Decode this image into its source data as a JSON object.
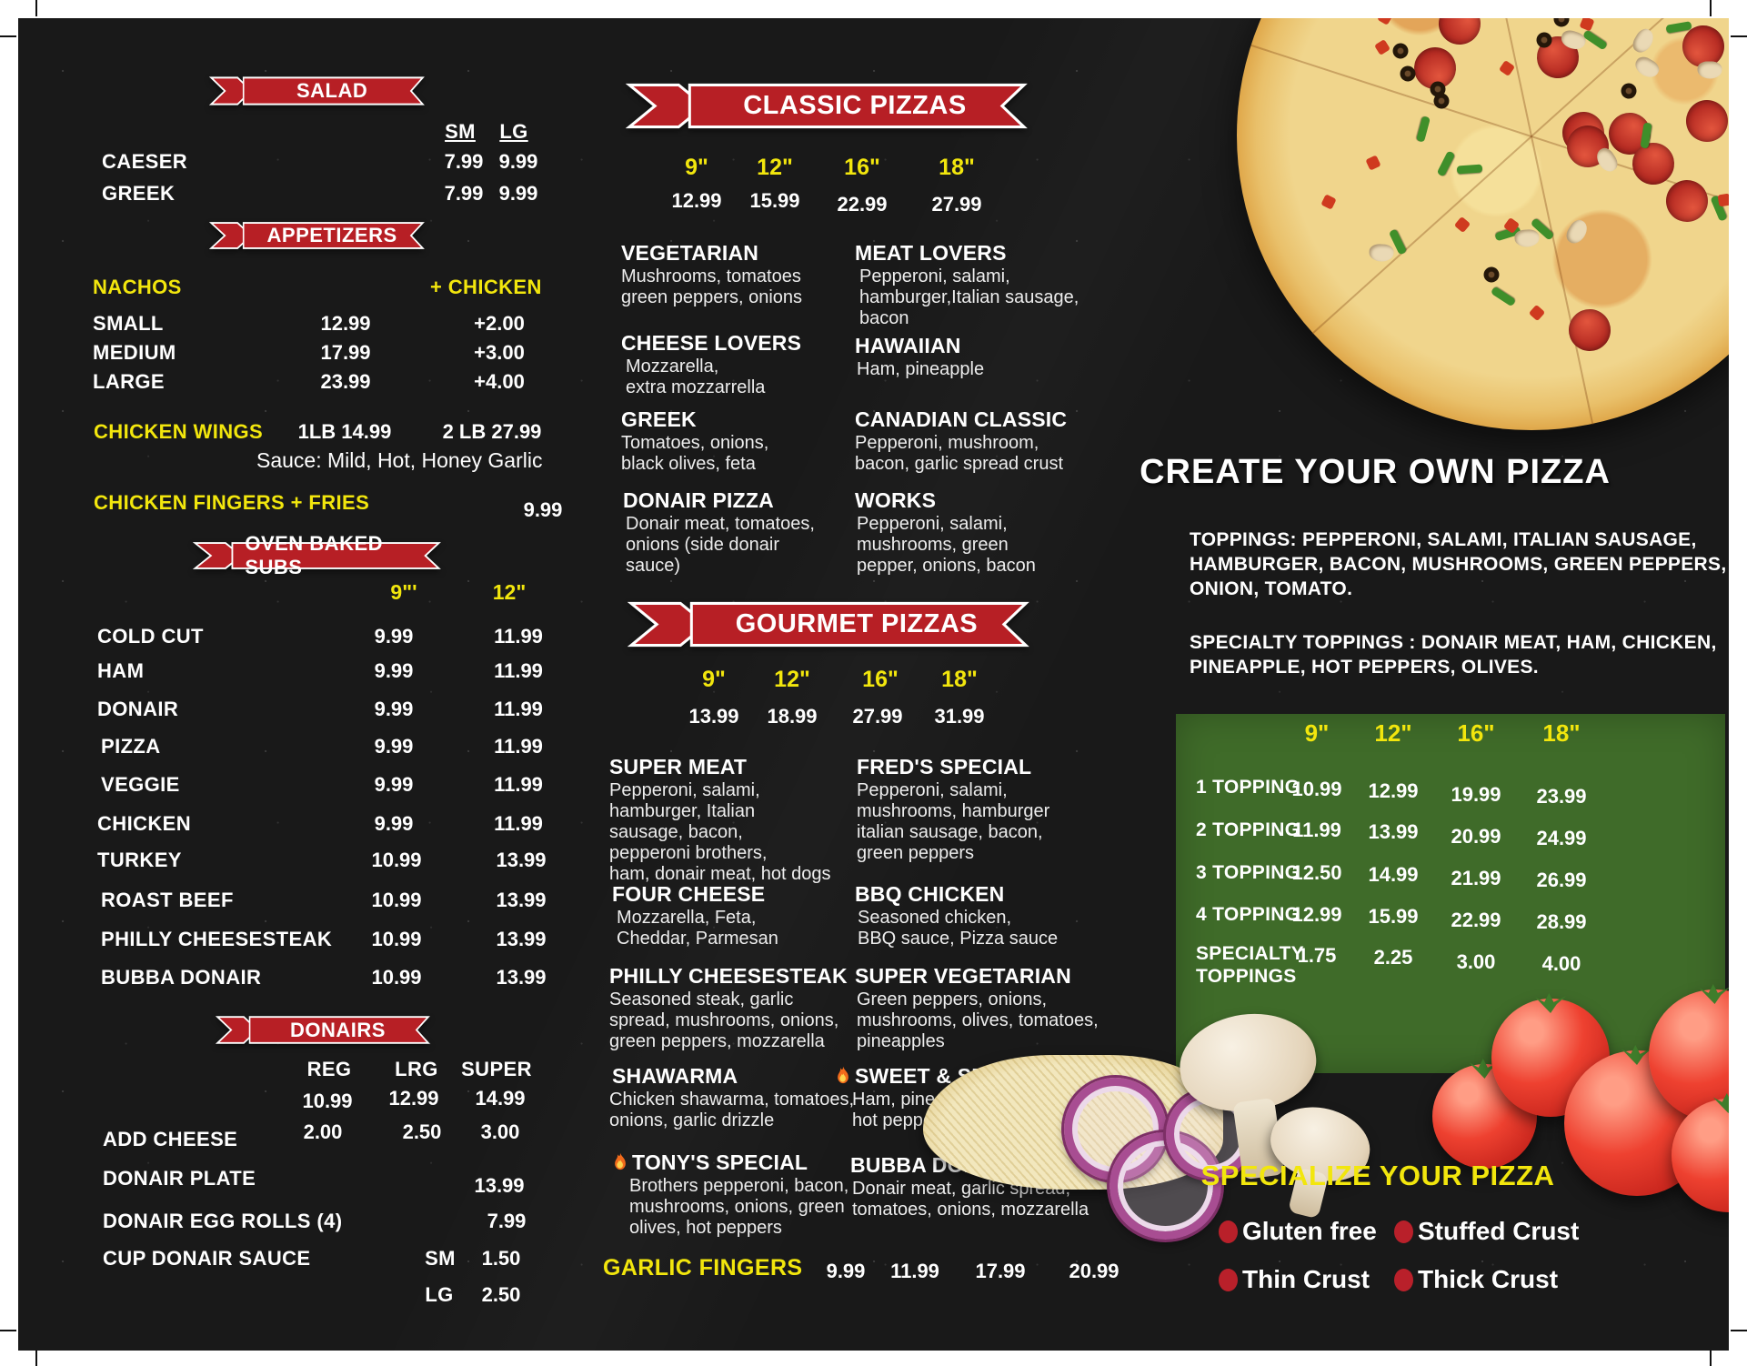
{
  "colors": {
    "board_bg": "#191919",
    "ribbon_red": "#b71f25",
    "accent_yellow": "#f2e60d",
    "table_green": "#3f6b29",
    "bullet_red": "#b9202a"
  },
  "salad": {
    "banner": "SALAD",
    "col_sm": "SM",
    "col_lg": "LG",
    "items": [
      {
        "name": "CAESER",
        "sm": "7.99",
        "lg": "9.99"
      },
      {
        "name": "GREEK",
        "sm": "7.99",
        "lg": "9.99"
      }
    ]
  },
  "appetizers": {
    "banner": "APPETIZERS",
    "nachos_label": "NACHOS",
    "chicken_label": "+ CHICKEN",
    "nachos": [
      {
        "size": "SMALL",
        "price": "12.99",
        "chicken": "+2.00"
      },
      {
        "size": "MEDIUM",
        "price": "17.99",
        "chicken": "+3.00"
      },
      {
        "size": "LARGE",
        "price": "23.99",
        "chicken": "+4.00"
      }
    ],
    "wings": {
      "label": "CHICKEN WINGS",
      "p1": "1LB 14.99",
      "p2": "2 LB  27.99",
      "sauce": "Sauce: Mild, Hot, Honey Garlic"
    },
    "fingers": {
      "label": "CHICKEN FINGERS + FRIES",
      "price": "9.99"
    }
  },
  "subs": {
    "banner": "OVEN BAKED SUBS",
    "col1": "9\"'",
    "col2": "12\"",
    "items": [
      {
        "name": "COLD CUT",
        "p1": "9.99",
        "p2": "11.99"
      },
      {
        "name": "HAM",
        "p1": "9.99",
        "p2": "11.99"
      },
      {
        "name": "DONAIR",
        "p1": "9.99",
        "p2": "11.99"
      },
      {
        "name": "PIZZA",
        "p1": "9.99",
        "p2": "11.99"
      },
      {
        "name": "VEGGIE",
        "p1": "9.99",
        "p2": "11.99"
      },
      {
        "name": "CHICKEN",
        "p1": "9.99",
        "p2": "11.99"
      },
      {
        "name": "TURKEY",
        "p1": "10.99",
        "p2": "13.99"
      },
      {
        "name": "ROAST BEEF",
        "p1": "10.99",
        "p2": "13.99"
      },
      {
        "name": "PHILLY CHEESESTEAK",
        "p1": "10.99",
        "p2": "13.99"
      },
      {
        "name": "BUBBA DONAIR",
        "p1": "10.99",
        "p2": "13.99"
      }
    ]
  },
  "donairs": {
    "banner": "DONAIRS",
    "cols": [
      "REG",
      "LRG",
      "SUPER"
    ],
    "base": [
      "10.99",
      "12.99",
      "14.99"
    ],
    "add_cheese": {
      "label": "ADD CHEESE",
      "prices": [
        "2.00",
        "2.50",
        "3.00"
      ]
    },
    "plate": {
      "label": "DONAIR PLATE",
      "price": "13.99"
    },
    "eggrolls": {
      "label": "DONAIR EGG ROLLS (4)",
      "price": "7.99"
    },
    "sauce": {
      "label": "CUP DONAIR SAUCE",
      "rows": [
        {
          "size": "SM",
          "price": "1.50"
        },
        {
          "size": "LG",
          "price": "2.50"
        }
      ]
    }
  },
  "classic": {
    "banner": "CLASSIC PIZZAS",
    "sizes": [
      "9\"",
      "12\"",
      "16\"",
      "18\""
    ],
    "prices": [
      "12.99",
      "15.99",
      "22.99",
      "27.99"
    ],
    "items": [
      {
        "name": "VEGETARIAN",
        "desc": "Mushrooms, tomatoes\ngreen peppers, onions"
      },
      {
        "name": "MEAT LOVERS",
        "desc": "Pepperoni, salami,\nhamburger,Italian sausage,\nbacon"
      },
      {
        "name": "CHEESE LOVERS",
        "desc": "Mozzarella,\nextra mozzarrella"
      },
      {
        "name": "HAWAIIAN",
        "desc": "Ham, pineapple"
      },
      {
        "name": "GREEK",
        "desc": "Tomatoes, onions,\nblack olives, feta"
      },
      {
        "name": "CANADIAN CLASSIC",
        "desc": "Pepperoni, mushroom,\nbacon, garlic spread crust"
      },
      {
        "name": "DONAIR PIZZA",
        "desc": "Donair meat, tomatoes,\nonions (side donair\nsauce)"
      },
      {
        "name": "WORKS",
        "desc": "Pepperoni, salami,\nmushrooms, green\npepper, onions, bacon"
      }
    ]
  },
  "gourmet": {
    "banner": "GOURMET PIZZAS",
    "sizes": [
      "9\"",
      "12\"",
      "16\"",
      "18\""
    ],
    "prices": [
      "13.99",
      "18.99",
      "27.99",
      "31.99"
    ],
    "items": [
      {
        "name": "SUPER MEAT",
        "desc": "Pepperoni, salami,\nhamburger, Italian\nsausage, bacon,\npepperoni brothers,\nham, donair meat, hot dogs"
      },
      {
        "name": "FRED'S SPECIAL",
        "desc": "Pepperoni, salami,\nmushrooms, hamburger\nitalian sausage, bacon,\ngreen peppers"
      },
      {
        "name": "FOUR CHEESE",
        "desc": "Mozzarella, Feta,\nCheddar, Parmesan"
      },
      {
        "name": "BBQ CHICKEN",
        "desc": "Seasoned chicken,\nBBQ sauce, Pizza sauce"
      },
      {
        "name": "PHILLY CHEESESTEAK",
        "desc": "Seasoned steak, garlic\nspread, mushrooms, onions,\ngreen peppers, mozzarella"
      },
      {
        "name": "SUPER VEGETARIAN",
        "desc": "Green peppers, onions,\nmushrooms, olives, tomatoes,\npineapples"
      },
      {
        "name": "SHAWARMA",
        "desc": "Chicken shawarma, tomatoes,\nonions, garlic drizzle"
      },
      {
        "name": "SWEET & SPICY HAWAIIAN",
        "spicy": true,
        "desc": "Ham, pineapples, chili flakes,\nhot peppers"
      },
      {
        "name": "TONY'S SPECIAL",
        "spicy": true,
        "desc": "Brothers pepperoni, bacon,\nmushrooms, onions, green\nolives, hot peppers"
      },
      {
        "name": "BUBBA DONAIR",
        "desc": "Donair meat, garlic spread,\ntomatoes, onions, mozzarella"
      }
    ]
  },
  "garlic": {
    "label": "GARLIC FINGERS",
    "prices": [
      "9.99",
      "11.99",
      "17.99",
      "20.99"
    ]
  },
  "create": {
    "title": "CREATE YOUR OWN PIZZA",
    "toppings": "TOPPINGS: PEPPERONI, SALAMI, ITALIAN SAUSAGE,\nHAMBURGER, BACON, MUSHROOMS, GREEN PEPPERS,\nONION, TOMATO.",
    "specialty": "SPECIALTY TOPPINGS : DONAIR MEAT, HAM, CHICKEN,\nPINEAPPLE, HOT PEPPERS, OLIVES.",
    "table": {
      "sizes": [
        "9\"",
        "12\"",
        "16\"",
        "18\""
      ],
      "rows": [
        {
          "label": "1 TOPPING",
          "prices": [
            "10.99",
            "12.99",
            "19.99",
            "23.99"
          ]
        },
        {
          "label": "2 TOPPING",
          "prices": [
            "11.99",
            "13.99",
            "20.99",
            "24.99"
          ]
        },
        {
          "label": "3 TOPPING",
          "prices": [
            "12.50",
            "14.99",
            "21.99",
            "26.99"
          ]
        },
        {
          "label": "4 TOPPING",
          "prices": [
            "12.99",
            "15.99",
            "22.99",
            "28.99"
          ]
        },
        {
          "label": "SPECIALTY\nTOPPINGS",
          "prices": [
            "1.75",
            "2.25",
            "3.00",
            "4.00"
          ]
        }
      ]
    }
  },
  "specialize": {
    "title": "SPECIALIZE YOUR PIZZA",
    "options": [
      "Gluten free",
      "Stuffed Crust",
      "Thin Crust",
      "Thick Crust"
    ]
  }
}
